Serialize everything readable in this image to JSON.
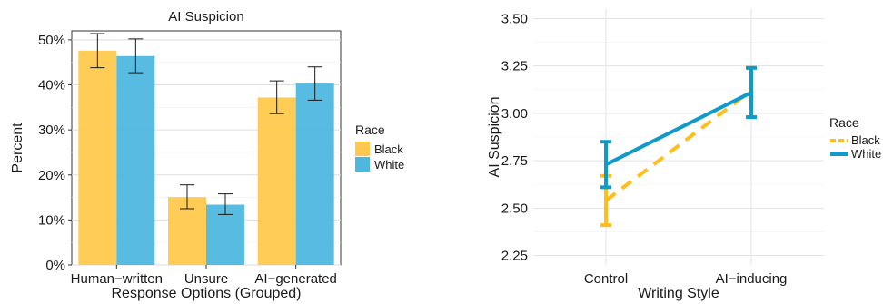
{
  "chart_data": [
    {
      "type": "bar",
      "title": "AI Suspicion",
      "xlabel": "Response Options (Grouped)",
      "ylabel": "Percent",
      "categories": [
        "Human−written",
        "Unsure",
        "AI−generated"
      ],
      "ylim": [
        0,
        0.52
      ],
      "yticks": [
        0,
        0.1,
        0.2,
        0.3,
        0.4,
        0.5
      ],
      "ytick_labels": [
        "0%",
        "10%",
        "20%",
        "30%",
        "40%",
        "50%"
      ],
      "grid": true,
      "legend": {
        "title": "Race",
        "position": "right"
      },
      "series": [
        {
          "name": "Black",
          "color": "#FFC94D",
          "values": [
            0.476,
            0.151,
            0.372
          ],
          "error_low": [
            0.438,
            0.125,
            0.336
          ],
          "error_high": [
            0.514,
            0.178,
            0.409
          ]
        },
        {
          "name": "White",
          "color": "#4FB7DF",
          "values": [
            0.464,
            0.134,
            0.403
          ],
          "error_low": [
            0.427,
            0.112,
            0.366
          ],
          "error_high": [
            0.502,
            0.158,
            0.44
          ]
        }
      ]
    },
    {
      "type": "line",
      "title": "",
      "xlabel": "Writing Style",
      "ylabel": "AI Suspicion",
      "categories": [
        "Control",
        "AI−inducing"
      ],
      "ylim": [
        2.2,
        3.55
      ],
      "yticks": [
        2.25,
        2.5,
        2.75,
        3.0,
        3.25,
        3.5
      ],
      "ytick_labels": [
        "2.25",
        "2.50",
        "2.75",
        "3.00",
        "3.25",
        "3.50"
      ],
      "grid": true,
      "legend": {
        "title": "Race",
        "position": "right"
      },
      "series": [
        {
          "name": "Black",
          "color": "#FFBE1C",
          "line_style": "dashed",
          "values": [
            2.54,
            3.12
          ],
          "error_low": [
            2.41,
            2.98
          ],
          "error_high": [
            2.67,
            3.24
          ]
        },
        {
          "name": "White",
          "color": "#0E9BCB",
          "line_style": "solid",
          "values": [
            2.73,
            3.11
          ],
          "error_low": [
            2.61,
            2.98
          ],
          "error_high": [
            2.85,
            3.24
          ]
        }
      ]
    }
  ]
}
